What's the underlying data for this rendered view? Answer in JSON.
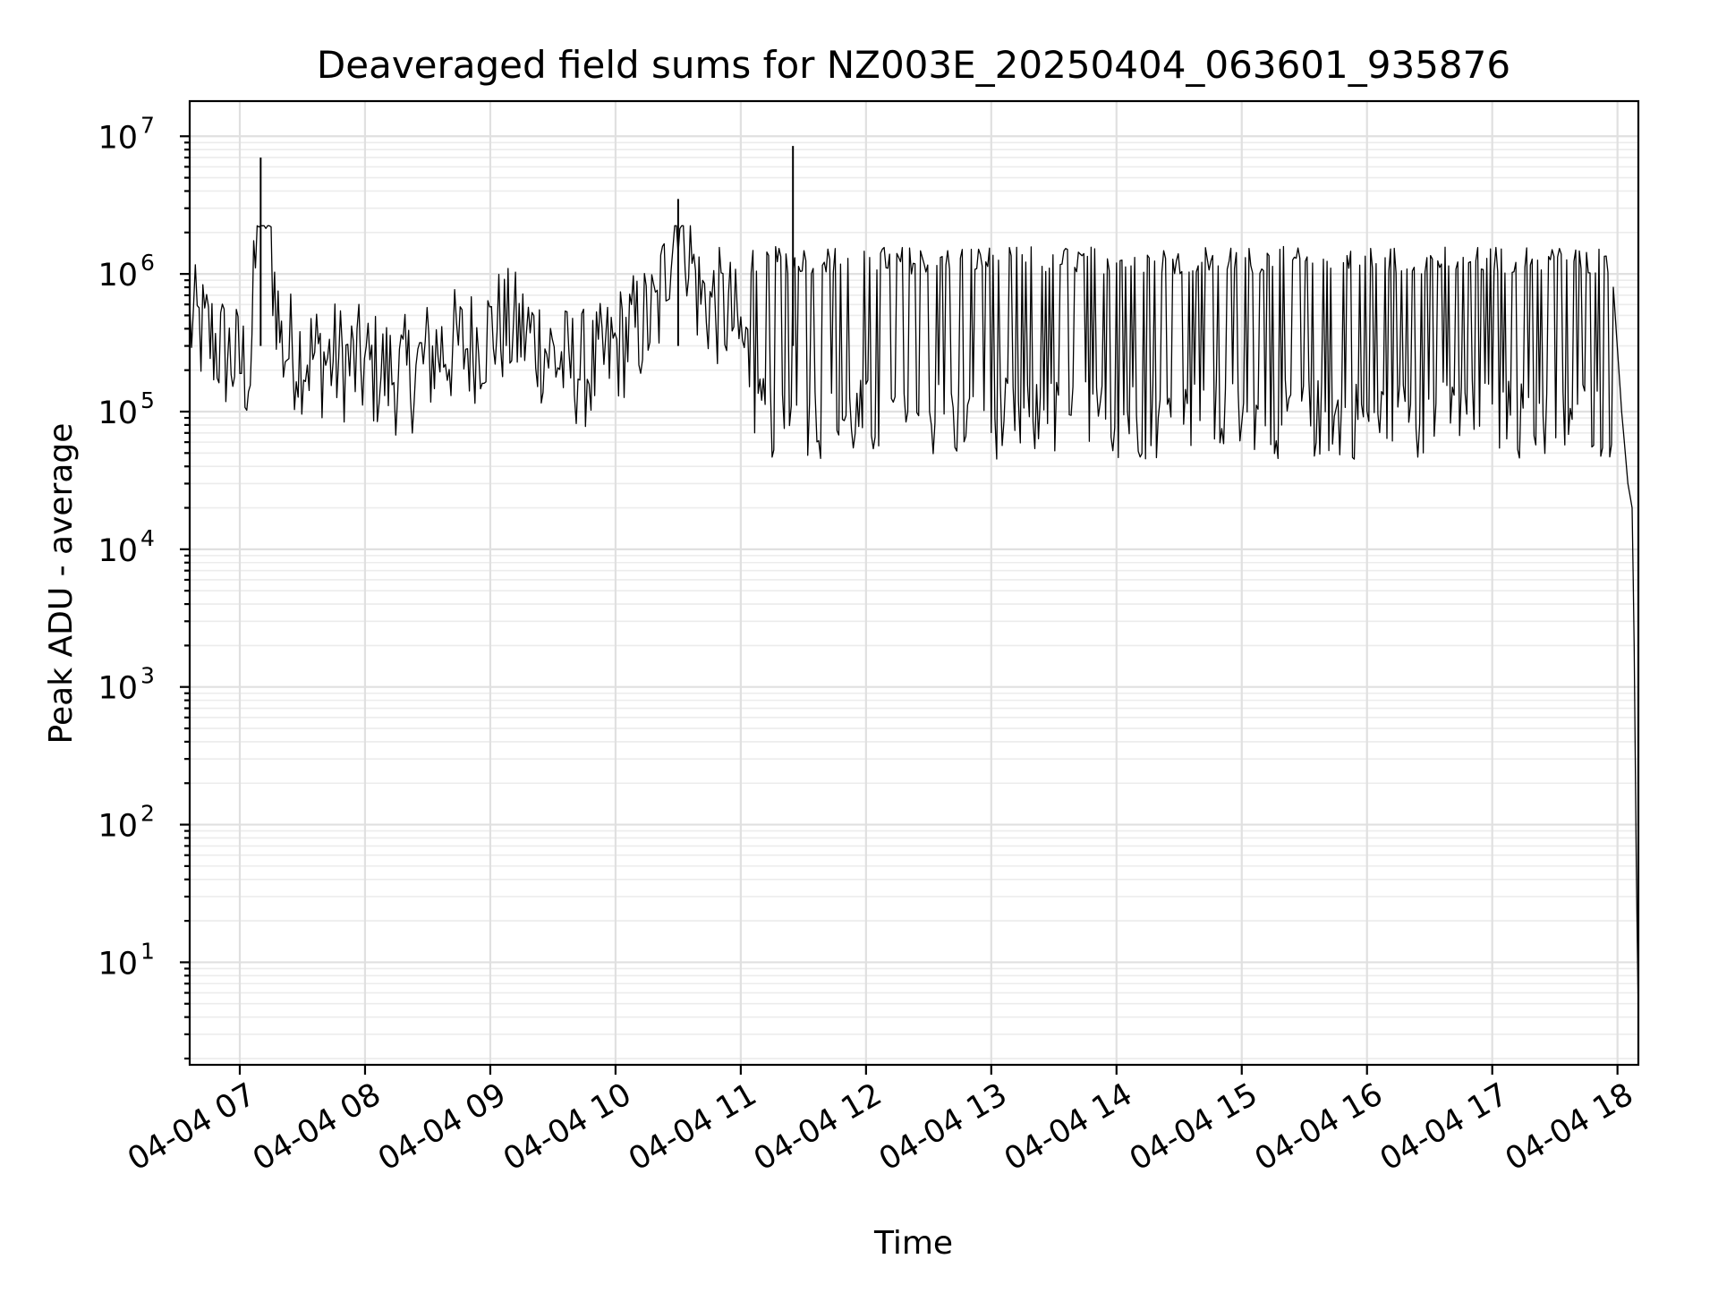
{
  "chart_data": {
    "type": "line",
    "title": "Deaveraged field sums for NZ003E_20250404_063601_935876",
    "xlabel": "Time",
    "ylabel": "Peak ADU - average",
    "yscale": "log",
    "xlim": [
      "04-04 06:36",
      "04-04 18:10"
    ],
    "ylim": [
      1.8,
      18000000
    ],
    "grid": true,
    "x_ticks": [
      "04-04 07",
      "04-04 08",
      "04-04 09",
      "04-04 10",
      "04-04 11",
      "04-04 12",
      "04-04 13",
      "04-04 14",
      "04-04 15",
      "04-04 16",
      "04-04 17",
      "04-04 18"
    ],
    "x_tick_hours": [
      7,
      8,
      9,
      10,
      11,
      12,
      13,
      14,
      15,
      16,
      17,
      18
    ],
    "y_ticks": [
      {
        "value": 10,
        "base": "10",
        "exp": "1"
      },
      {
        "value": 100,
        "base": "10",
        "exp": "2"
      },
      {
        "value": 1000,
        "base": "10",
        "exp": "3"
      },
      {
        "value": 10000,
        "base": "10",
        "exp": "4"
      },
      {
        "value": 100000,
        "base": "10",
        "exp": "5"
      },
      {
        "value": 1000000,
        "base": "10",
        "exp": "6"
      },
      {
        "value": 10000000,
        "base": "10",
        "exp": "7"
      }
    ],
    "line_color": "#000000",
    "grid_color": "#e0e0e0",
    "series": [
      {
        "x": [
          "06:36",
          "06:45",
          "06:55",
          "07:05",
          "07:10",
          "07:20",
          "07:35",
          "07:50",
          "08:05",
          "08:20",
          "08:35",
          "08:50",
          "09:05",
          "09:20",
          "09:35",
          "09:50",
          "10:05",
          "10:20",
          "10:30",
          "10:40",
          "10:55",
          "11:05",
          "11:15",
          "11:25",
          "11:40",
          "12:00",
          "12:20",
          "12:40",
          "13:00",
          "13:20",
          "13:40",
          "14:00",
          "14:20",
          "14:40",
          "15:00",
          "15:20",
          "15:40",
          "16:00",
          "16:20",
          "16:40",
          "17:00",
          "17:20",
          "17:40",
          "17:58",
          "18:02",
          "18:05",
          "18:07",
          "18:08",
          "18:09",
          "18:10"
        ],
        "y": [
          450000,
          350000,
          250000,
          200000,
          7000000,
          300000,
          250000,
          230000,
          200000,
          180000,
          280000,
          300000,
          420000,
          350000,
          220000,
          200000,
          350000,
          500000,
          3500000,
          700000,
          500000,
          220000,
          150000,
          8500000,
          120000,
          110000,
          150000,
          130000,
          140000,
          130000,
          110000,
          100000,
          130000,
          140000,
          130000,
          140000,
          150000,
          180000,
          200000,
          250000,
          300000,
          400000,
          600000,
          800000,
          100000,
          30000,
          20000,
          2000,
          50,
          4
        ]
      }
    ]
  }
}
